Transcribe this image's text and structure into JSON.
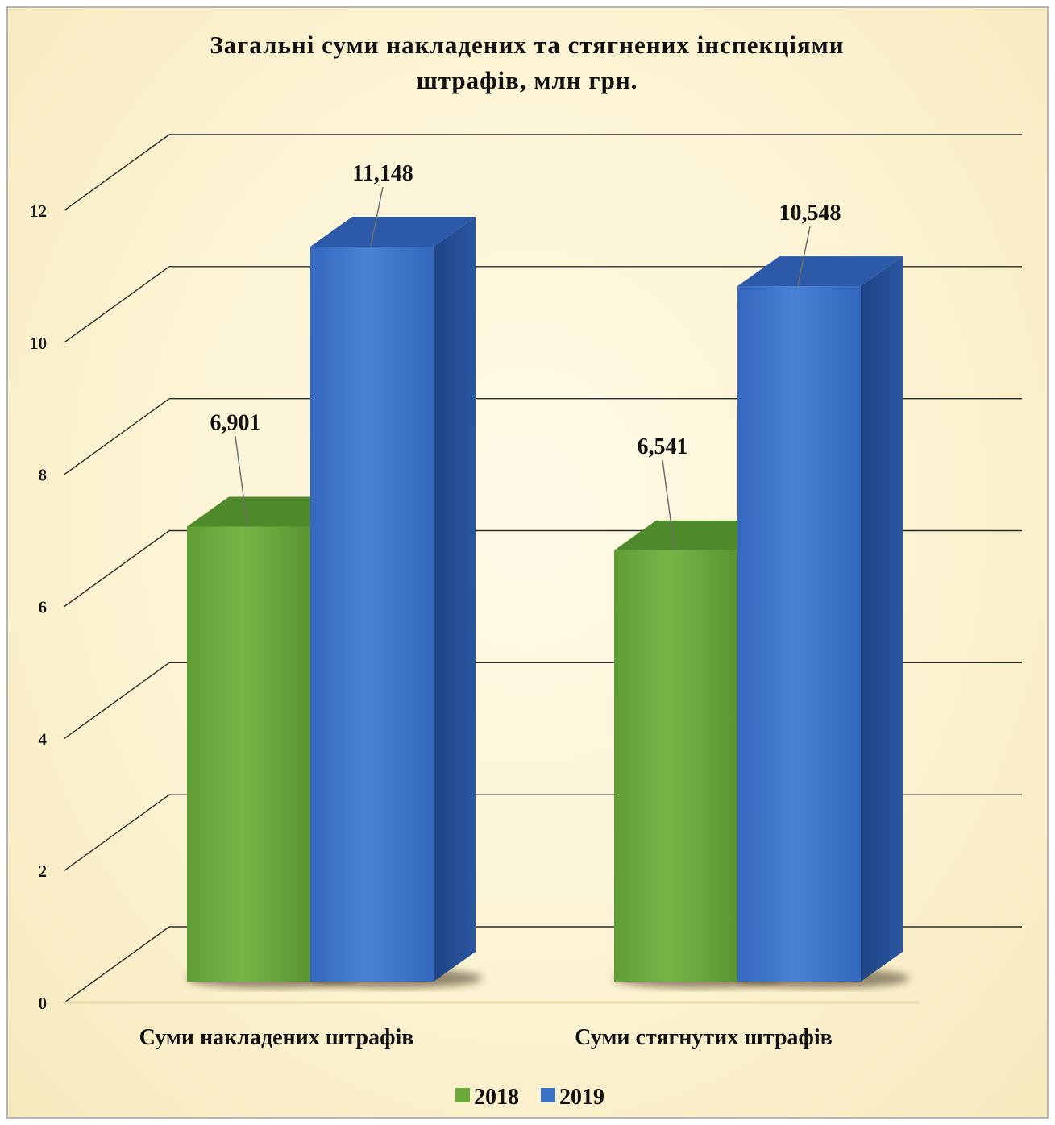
{
  "chart_data": {
    "type": "bar",
    "title_lines": [
      "Загальні суми накладених та стягнених інспекціями",
      "штрафів, млн грн."
    ],
    "categories": [
      "Суми накладених штрафів",
      "Суми стягнутих штрафів"
    ],
    "series": [
      {
        "name": "2018",
        "values": [
          6.901,
          6.541
        ],
        "labels": [
          "6,901",
          "6,541"
        ],
        "color": "#6aaa3a",
        "top_color": "#4f8a2a"
      },
      {
        "name": "2019",
        "values": [
          11.148,
          10.548
        ],
        "labels": [
          "11,148",
          "10,548"
        ],
        "color": "#3a72c8",
        "side_color": "#234a8c",
        "top_color": "#2d5aa8"
      }
    ],
    "yticks": [
      "0",
      "2",
      "4",
      "6",
      "8",
      "10",
      "12"
    ],
    "ylim": [
      0,
      12
    ],
    "grid": true,
    "style": "3d-column",
    "legend_position": "bottom"
  }
}
